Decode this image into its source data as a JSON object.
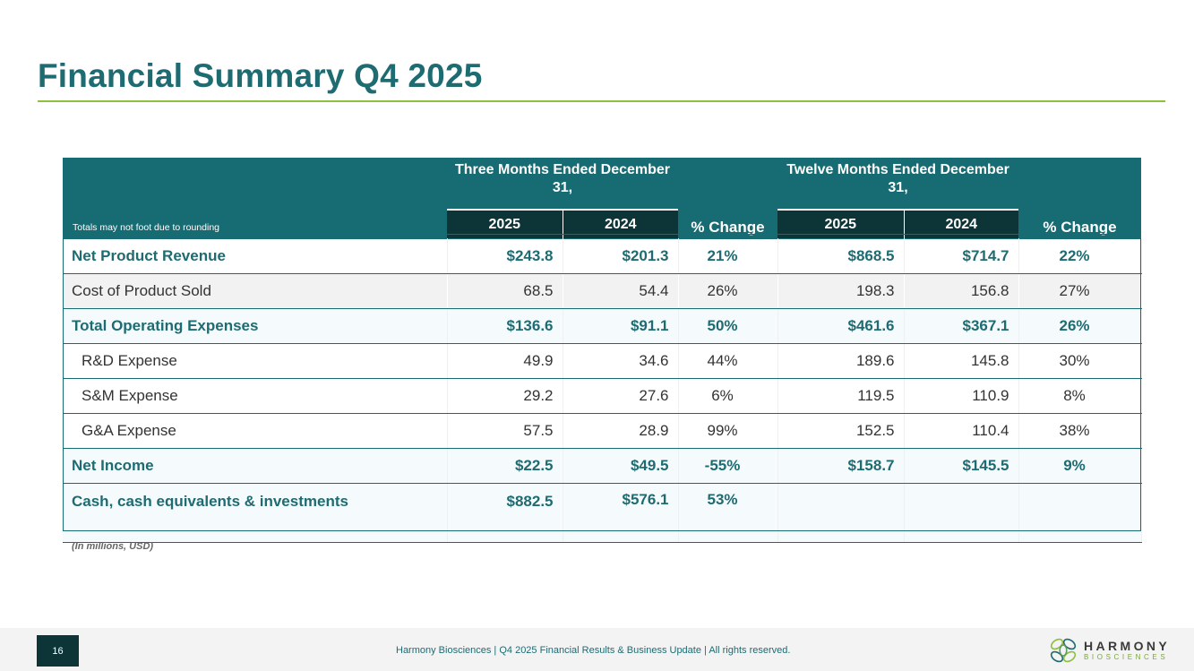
{
  "page": {
    "title": "Financial Summary Q4 2025"
  },
  "table": {
    "note": "Totals may not foot due to rounding",
    "group_three_months": "Three Months Ended December 31,",
    "group_twelve_months": "Twelve Months Ended December 31,",
    "pct_change_label": "% Change",
    "years": [
      "2025",
      "2024"
    ],
    "rows": [
      {
        "label": "Net Product Revenue",
        "q_2025": "$243.8",
        "q_2024": "$201.3",
        "q_change": "21%",
        "y_2025": "$868.5",
        "y_2024": "$714.7",
        "y_change": "22%"
      },
      {
        "label": "Cost of Product Sold",
        "q_2025": "68.5",
        "q_2024": "54.4",
        "q_change": "26%",
        "y_2025": "198.3",
        "y_2024": "156.8",
        "y_change": "27%"
      },
      {
        "label": "Total Operating Expenses",
        "q_2025": "$136.6",
        "q_2024": "$91.1",
        "q_change": "50%",
        "y_2025": "$461.6",
        "y_2024": "$367.1",
        "y_change": "26%"
      },
      {
        "label": "R&D Expense",
        "q_2025": "49.9",
        "q_2024": "34.6",
        "q_change": "44%",
        "y_2025": "189.6",
        "y_2024": "145.8",
        "y_change": "30%"
      },
      {
        "label": "S&M Expense",
        "q_2025": "29.2",
        "q_2024": "27.6",
        "q_change": "6%",
        "y_2025": "119.5",
        "y_2024": "110.9",
        "y_change": "8%"
      },
      {
        "label": "G&A Expense",
        "q_2025": "57.5",
        "q_2024": "28.9",
        "q_change": "99%",
        "y_2025": "152.5",
        "y_2024": "110.4",
        "y_change": "38%"
      },
      {
        "label": "Net Income",
        "q_2025": "$22.5",
        "q_2024": "$49.5",
        "q_change": "-55%",
        "y_2025": "$158.7",
        "y_2024": "$145.5",
        "y_change": "9%"
      },
      {
        "label": "Cash, cash equivalents & investments",
        "q_2025": "$882.5",
        "q_2024": "$576.1",
        "q_change": "53%",
        "y_2025": "",
        "y_2024": "",
        "y_change": ""
      }
    ]
  },
  "units_note": "(In millions, USD)",
  "footer": {
    "page_number": "16",
    "text": "Harmony Biosciences | Q4 2025 Financial Results & Business Update | All rights reserved.",
    "logo_name": "HARMONY",
    "logo_sub": "BIOSCIENCES"
  },
  "colors": {
    "brand_teal": "#1e6b72",
    "header_teal": "#176b73",
    "dark_teal": "#0d3538",
    "accent_green": "#8fbf3f"
  }
}
